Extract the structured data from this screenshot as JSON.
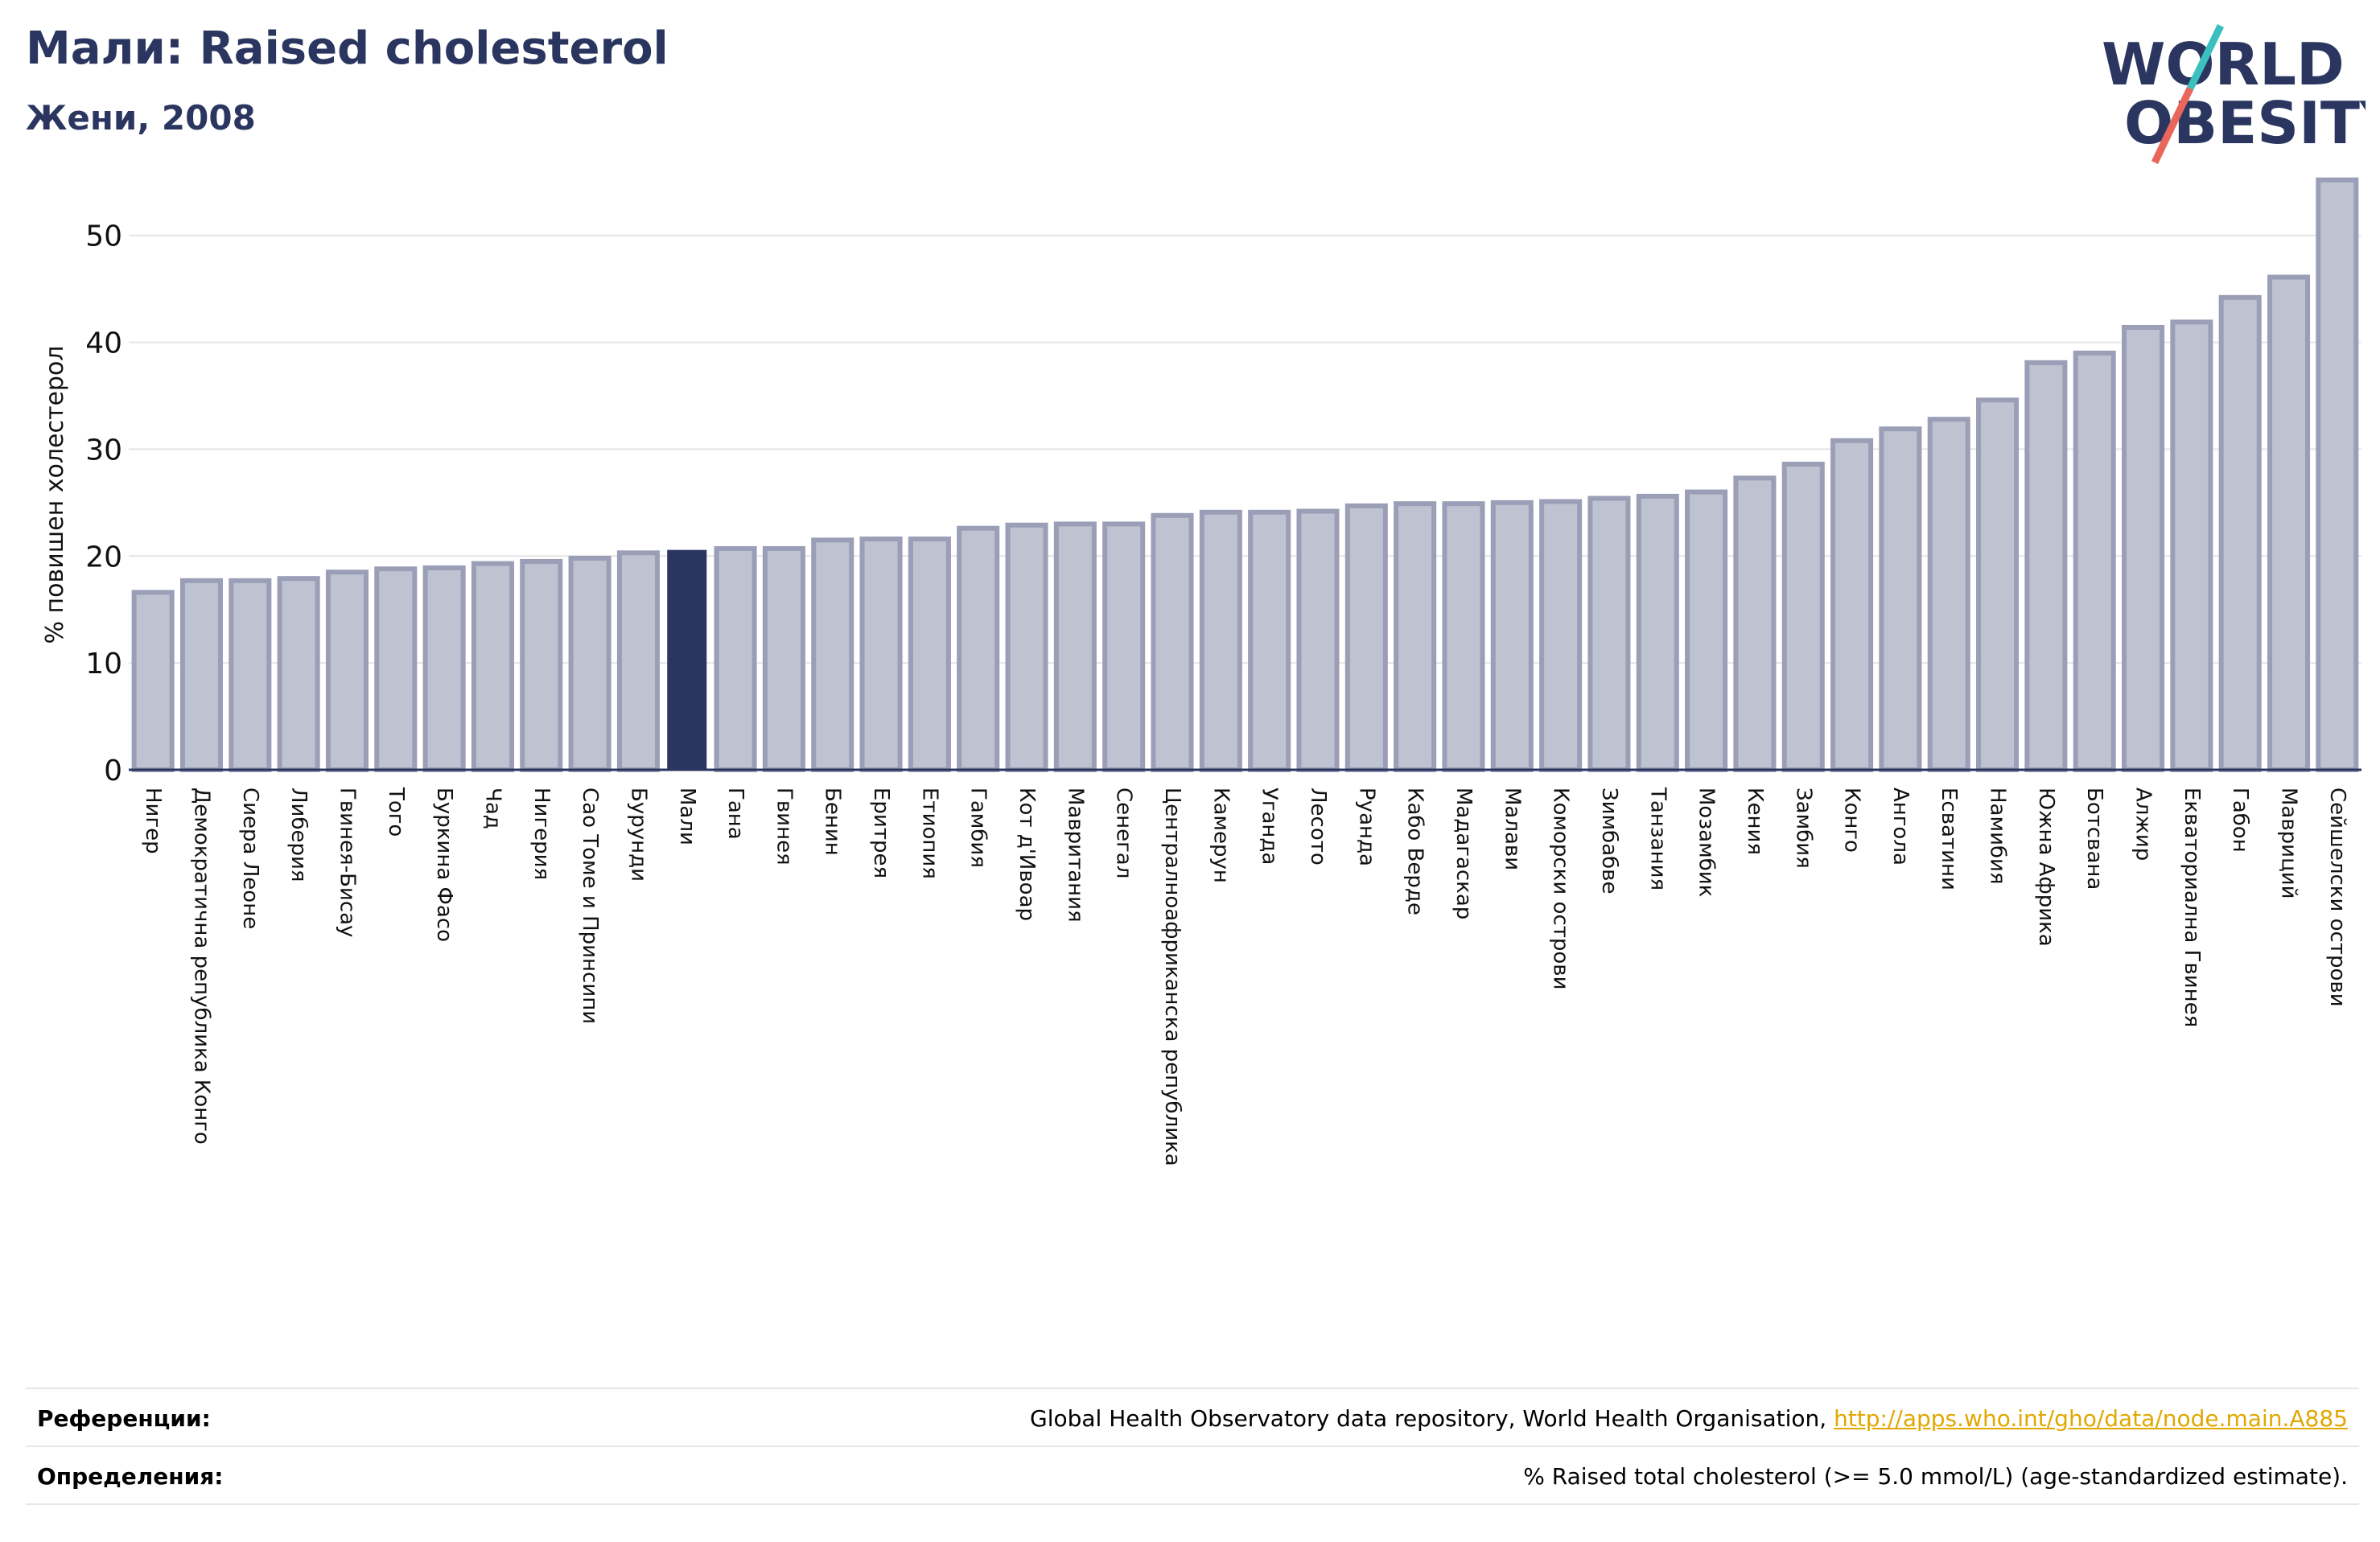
{
  "header": {
    "title": "Мали: Raised cholesterol",
    "subtitle": "Жени, 2008"
  },
  "logo": {
    "line1": "WORLD",
    "line2": "OBESITY",
    "slash_color_top": "#3bbfbf",
    "slash_color_bottom": "#e8665a",
    "text_color": "#2b3660"
  },
  "colors": {
    "bar": "#bfc2d0",
    "bar_border": "#9a9eb6",
    "highlight": "#2b3660",
    "grid": "#e5e5e5",
    "axis": "#2b3660"
  },
  "chart_data": {
    "type": "bar",
    "ylabel": "% повишен холестерол",
    "ylim": [
      0,
      56
    ],
    "yticks": [
      0,
      10,
      20,
      30,
      40,
      50
    ],
    "grid": true,
    "highlight": "Мали",
    "categories": [
      "Нигер",
      "Демократична република Конго",
      "Сиера Леоне",
      "Либерия",
      "Гвинея-Бисау",
      "Того",
      "Буркина Фасо",
      "Чад",
      "Нигерия",
      "Сао Томе и Принсипи",
      "Бурунди",
      "Мали",
      "Гана",
      "Гвинея",
      "Бенин",
      "Еритрея",
      "Етиопия",
      "Гамбия",
      "Кот д'Ивоар",
      "Мавритания",
      "Сенегал",
      "Централноафриканска република",
      "Камерун",
      "Уганда",
      "Лесото",
      "Руанда",
      "Кабо Верде",
      "Мадагаскар",
      "Малави",
      "Коморски острови",
      "Зимбабве",
      "Танзания",
      "Мозамбик",
      "Кения",
      "Замбия",
      "Конго",
      "Ангола",
      "Есватини",
      "Намибия",
      "Южна Африка",
      "Ботсвана",
      "Алжир",
      "Екваториална Гвинея",
      "Габон",
      "Мавриций",
      "Сейшелски острови"
    ],
    "values": [
      16.6,
      17.7,
      17.7,
      17.9,
      18.5,
      18.8,
      18.9,
      19.3,
      19.5,
      19.8,
      20.3,
      20.5,
      20.7,
      20.7,
      21.5,
      21.6,
      21.6,
      22.6,
      22.9,
      23.0,
      23.0,
      23.8,
      24.1,
      24.1,
      24.2,
      24.7,
      24.9,
      24.9,
      25.0,
      25.1,
      25.4,
      25.6,
      26.0,
      27.3,
      28.6,
      30.8,
      31.9,
      32.8,
      34.6,
      38.1,
      39.0,
      41.4,
      41.9,
      44.2,
      46.1,
      55.2
    ]
  },
  "footer": {
    "references_label": "Референции:",
    "references_text": "Global Health Observatory data repository, World Health Organisation, ",
    "references_link": "http://apps.who.int/gho/data/node.main.A885",
    "definitions_label": "Определения:",
    "definitions_text": "% Raised total cholesterol (>= 5.0 mmol/L) (age-standardized estimate)."
  }
}
